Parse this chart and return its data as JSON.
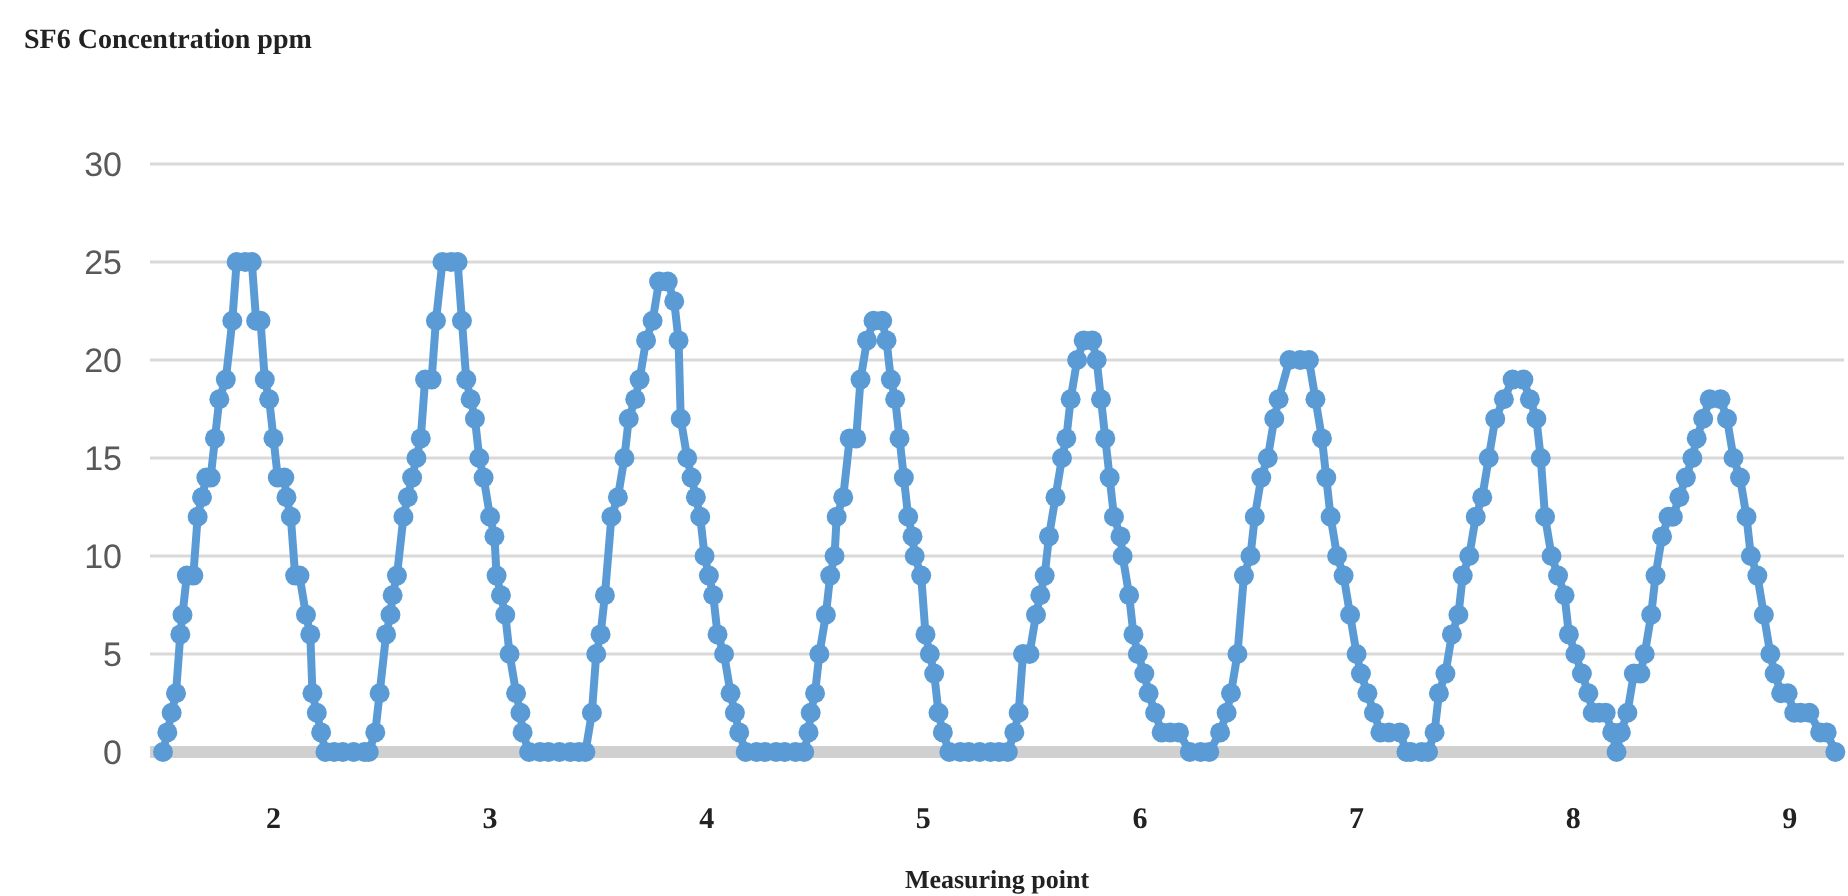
{
  "chart_data": {
    "type": "line",
    "ylabel": "SF6 Concentration ppm",
    "xlabel": "Measuring point",
    "xlim": [
      1.43,
      9.25
    ],
    "xticks": [
      2,
      3,
      4,
      5,
      6,
      7,
      8,
      9
    ],
    "ylim": [
      0,
      30
    ],
    "yticks": [
      0,
      5,
      10,
      15,
      20,
      25,
      30
    ],
    "grid": "y",
    "marker": "circle",
    "line_style": "solid",
    "series": [
      {
        "color": "#5b9bd5",
        "x": [
          1.49,
          1.51,
          1.53,
          1.55,
          1.57,
          1.58,
          1.6,
          1.63,
          1.65,
          1.67,
          1.69,
          1.71,
          1.73,
          1.75,
          1.78,
          1.81,
          1.83,
          1.87,
          1.9,
          1.92,
          1.94,
          1.96,
          1.98,
          2.0,
          2.02,
          2.05,
          2.06,
          2.08,
          2.1,
          2.12,
          2.15,
          2.17,
          2.18,
          2.2,
          2.22,
          2.24,
          2.28,
          2.32,
          2.37,
          2.42,
          2.44,
          2.47,
          2.49,
          2.52,
          2.54,
          2.55,
          2.57,
          2.6,
          2.62,
          2.64,
          2.66,
          2.68,
          2.7,
          2.73,
          2.75,
          2.78,
          2.82,
          2.85,
          2.87,
          2.89,
          2.91,
          2.93,
          2.95,
          2.97,
          3.0,
          3.02,
          3.03,
          3.05,
          3.07,
          3.09,
          3.12,
          3.14,
          3.15,
          3.18,
          3.23,
          3.27,
          3.32,
          3.37,
          3.41,
          3.44,
          3.47,
          3.49,
          3.51,
          3.53,
          3.56,
          3.59,
          3.62,
          3.64,
          3.67,
          3.69,
          3.72,
          3.75,
          3.78,
          3.82,
          3.85,
          3.87,
          3.88,
          3.91,
          3.93,
          3.95,
          3.97,
          3.99,
          4.01,
          4.03,
          4.05,
          4.08,
          4.11,
          4.13,
          4.15,
          4.18,
          4.23,
          4.27,
          4.32,
          4.36,
          4.41,
          4.45,
          4.47,
          4.48,
          4.5,
          4.52,
          4.55,
          4.57,
          4.59,
          4.6,
          4.63,
          4.66,
          4.69,
          4.71,
          4.74,
          4.77,
          4.81,
          4.83,
          4.85,
          4.87,
          4.89,
          4.91,
          4.93,
          4.95,
          4.96,
          4.99,
          5.01,
          5.03,
          5.05,
          5.07,
          5.09,
          5.12,
          5.17,
          5.21,
          5.26,
          5.31,
          5.35,
          5.39,
          5.42,
          5.44,
          5.46,
          5.49,
          5.52,
          5.54,
          5.56,
          5.58,
          5.61,
          5.64,
          5.66,
          5.68,
          5.71,
          5.74,
          5.78,
          5.8,
          5.82,
          5.84,
          5.86,
          5.88,
          5.91,
          5.92,
          5.95,
          5.97,
          5.99,
          6.02,
          6.04,
          6.07,
          6.1,
          6.14,
          6.18,
          6.23,
          6.28,
          6.32,
          6.37,
          6.4,
          6.42,
          6.45,
          6.48,
          6.51,
          6.53,
          6.56,
          6.59,
          6.62,
          6.64,
          6.69,
          6.74,
          6.78,
          6.81,
          6.84,
          6.86,
          6.88,
          6.91,
          6.94,
          6.97,
          7.0,
          7.02,
          7.05,
          7.08,
          7.11,
          7.15,
          7.2,
          7.23,
          7.25,
          7.3,
          7.33,
          7.36,
          7.38,
          7.41,
          7.44,
          7.47,
          7.49,
          7.52,
          7.55,
          7.58,
          7.61,
          7.64,
          7.68,
          7.72,
          7.77,
          7.8,
          7.83,
          7.85,
          7.87,
          7.9,
          7.93,
          7.96,
          7.98,
          8.01,
          8.04,
          8.07,
          8.09,
          8.12,
          8.15,
          8.18,
          8.2,
          8.22,
          8.25,
          8.28,
          8.31,
          8.33,
          8.36,
          8.38,
          8.41,
          8.44,
          8.46,
          8.49,
          8.52,
          8.55,
          8.57,
          8.6,
          8.63,
          8.68,
          8.71,
          8.74,
          8.77,
          8.8,
          8.82,
          8.85,
          8.88,
          8.91,
          8.93,
          8.96,
          8.99,
          9.02,
          9.05,
          9.09,
          9.14,
          9.17,
          9.21
        ],
        "values": [
          0,
          1,
          2,
          3,
          6,
          7,
          9,
          9,
          12,
          13,
          14,
          14,
          16,
          18,
          19,
          22,
          25,
          25,
          25,
          22,
          22,
          19,
          18,
          16,
          14,
          14,
          13,
          12,
          9,
          9,
          7,
          6,
          3,
          2,
          1,
          0,
          0,
          0,
          0,
          0,
          0,
          1,
          3,
          6,
          7,
          8,
          9,
          12,
          13,
          14,
          15,
          16,
          19,
          19,
          22,
          25,
          25,
          25,
          22,
          19,
          18,
          17,
          15,
          14,
          12,
          11,
          9,
          8,
          7,
          5,
          3,
          2,
          1,
          0,
          0,
          0,
          0,
          0,
          0,
          0,
          2,
          5,
          6,
          8,
          12,
          13,
          15,
          17,
          18,
          19,
          21,
          22,
          24,
          24,
          23,
          21,
          17,
          15,
          14,
          13,
          12,
          10,
          9,
          8,
          6,
          5,
          3,
          2,
          1,
          0,
          0,
          0,
          0,
          0,
          0,
          0,
          1,
          2,
          3,
          5,
          7,
          9,
          10,
          12,
          13,
          16,
          16,
          19,
          21,
          22,
          22,
          21,
          19,
          18,
          16,
          14,
          12,
          11,
          10,
          9,
          6,
          5,
          4,
          2,
          1,
          0,
          0,
          0,
          0,
          0,
          0,
          0,
          1,
          2,
          5,
          5,
          7,
          8,
          9,
          11,
          13,
          15,
          16,
          18,
          20,
          21,
          21,
          20,
          18,
          16,
          14,
          12,
          11,
          10,
          8,
          6,
          5,
          4,
          3,
          2,
          1,
          1,
          1,
          0,
          0,
          0,
          1,
          2,
          3,
          5,
          9,
          10,
          12,
          14,
          15,
          17,
          18,
          20,
          20,
          20,
          18,
          16,
          14,
          12,
          10,
          9,
          7,
          5,
          4,
          3,
          2,
          1,
          1,
          1,
          0,
          0,
          0,
          0,
          1,
          3,
          4,
          6,
          7,
          9,
          10,
          12,
          13,
          15,
          17,
          18,
          19,
          19,
          18,
          17,
          15,
          12,
          10,
          9,
          8,
          6,
          5,
          4,
          3,
          2,
          2,
          2,
          1,
          0,
          1,
          2,
          4,
          4,
          5,
          7,
          9,
          11,
          12,
          12,
          13,
          14,
          15,
          16,
          17,
          18,
          18,
          17,
          15,
          14,
          12,
          10,
          9,
          7,
          5,
          4,
          3,
          3,
          2,
          2,
          2,
          1,
          1,
          0
        ]
      }
    ]
  }
}
